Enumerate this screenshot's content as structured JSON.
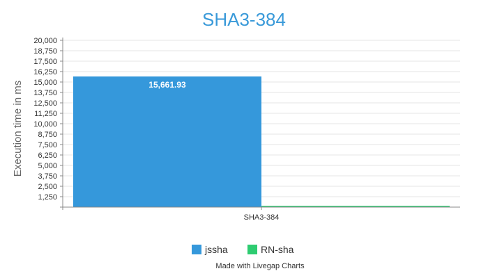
{
  "chart_data": {
    "type": "bar",
    "title": "SHA3-384",
    "ylabel": "Execution time in ms",
    "xlabel": "",
    "categories": [
      "SHA3-384"
    ],
    "series": [
      {
        "name": "jssha",
        "values": [
          15661.93
        ],
        "color": "#3598db",
        "data_label": "15,661.93"
      },
      {
        "name": "RN-sha",
        "values": [
          150
        ],
        "color": "#2ecc71"
      }
    ],
    "ylim": [
      0,
      20000
    ],
    "yticks": [
      {
        "v": 1250,
        "label": "1,250"
      },
      {
        "v": 2500,
        "label": "2,500"
      },
      {
        "v": 3750,
        "label": "3,750"
      },
      {
        "v": 5000,
        "label": "5,000"
      },
      {
        "v": 6250,
        "label": "6,250"
      },
      {
        "v": 7500,
        "label": "7,500"
      },
      {
        "v": 8750,
        "label": "8,750"
      },
      {
        "v": 10000,
        "label": "10,000"
      },
      {
        "v": 11250,
        "label": "11,250"
      },
      {
        "v": 12500,
        "label": "12,500"
      },
      {
        "v": 13750,
        "label": "13,750"
      },
      {
        "v": 15000,
        "label": "15,000"
      },
      {
        "v": 16250,
        "label": "16,250"
      },
      {
        "v": 17500,
        "label": "17,500"
      },
      {
        "v": 18750,
        "label": "18,750"
      },
      {
        "v": 20000,
        "label": "20,000"
      }
    ],
    "grid": true,
    "legend_position": "bottom-center"
  },
  "credit": "Made with Livegap Charts"
}
